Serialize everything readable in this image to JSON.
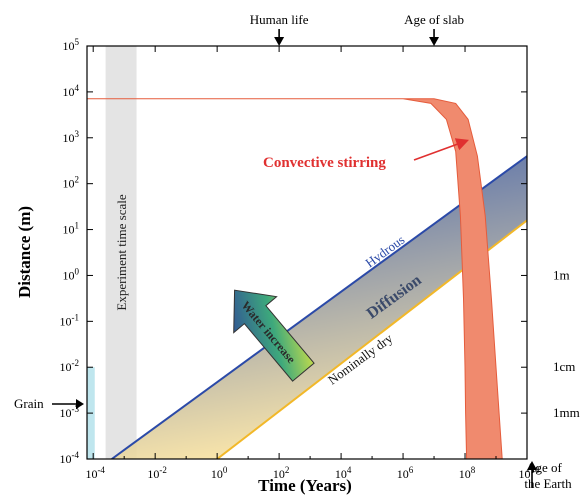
{
  "chart_data": {
    "type": "area",
    "xlabel": "Time (Years)",
    "ylabel": "Distance (m)",
    "x_scale": "log",
    "y_scale": "log",
    "xlim_exp": [
      -4.2,
      10
    ],
    "ylim_exp": [
      -4,
      5
    ],
    "x_ticks": [
      {
        "value": -4,
        "label": "10",
        "sup": "-4"
      },
      {
        "value": -2,
        "label": "10",
        "sup": "-2"
      },
      {
        "value": 0,
        "label": "10",
        "sup": "0"
      },
      {
        "value": 2,
        "label": "10",
        "sup": "2"
      },
      {
        "value": 4,
        "label": "10",
        "sup": "4"
      },
      {
        "value": 6,
        "label": "10",
        "sup": "6"
      },
      {
        "value": 8,
        "label": "10",
        "sup": "8"
      },
      {
        "value": 10,
        "label": "10",
        "sup": "10"
      }
    ],
    "y_ticks": [
      {
        "value": -4,
        "label": "10",
        "sup": "-4"
      },
      {
        "value": -3,
        "label": "10",
        "sup": "-3"
      },
      {
        "value": -2,
        "label": "10",
        "sup": "-2"
      },
      {
        "value": -1,
        "label": "10",
        "sup": "-1"
      },
      {
        "value": 0,
        "label": "10",
        "sup": "0"
      },
      {
        "value": 1,
        "label": "10",
        "sup": "1"
      },
      {
        "value": 2,
        "label": "10",
        "sup": "2"
      },
      {
        "value": 3,
        "label": "10",
        "sup": "3"
      },
      {
        "value": 4,
        "label": "10",
        "sup": "4"
      },
      {
        "value": 5,
        "label": "10",
        "sup": "5"
      }
    ],
    "right_scale": [
      {
        "value": 0,
        "label": "1m"
      },
      {
        "value": -2,
        "label": "1cm"
      },
      {
        "value": -3,
        "label": "1mm"
      }
    ],
    "top_markers": [
      {
        "x": 2,
        "label": "Human life"
      },
      {
        "x": 7,
        "label": "Age of slab"
      }
    ],
    "age_of_earth": {
      "x": 9.66,
      "label_lines": [
        "Age of",
        "the Earth"
      ]
    },
    "grain": {
      "label": "Grain",
      "y": -3.6
    },
    "grain_band": {
      "x_from": -4.2,
      "x_to": -3.95,
      "y_top": -2
    },
    "experiment_band": {
      "x_from": -3.6,
      "x_to": -2.6,
      "label": "Experiment time scale"
    },
    "diffusion": {
      "label": "Diffusion",
      "hydrous": {
        "name": "Hydrous",
        "points": [
          [
            -3.4,
            -4
          ],
          [
            10,
            2.6
          ]
        ]
      },
      "dry": {
        "name": "Nominally dry",
        "points": [
          [
            0,
            -4
          ],
          [
            10,
            1.2
          ]
        ]
      }
    },
    "convective": {
      "label": "Convective stirring",
      "plateau_y": 3.85,
      "upper_edge": [
        [
          -4.2,
          3.85
        ],
        [
          7.0,
          3.85
        ],
        [
          7.7,
          3.75
        ],
        [
          8.1,
          3.4
        ],
        [
          8.4,
          2.6
        ],
        [
          8.65,
          1.3
        ],
        [
          8.85,
          -0.5
        ],
        [
          9.0,
          -2.0
        ],
        [
          9.1,
          -3.0
        ],
        [
          9.2,
          -4
        ]
      ],
      "lower_edge": [
        [
          -4.2,
          3.85
        ],
        [
          6.0,
          3.85
        ],
        [
          6.9,
          3.75
        ],
        [
          7.4,
          3.4
        ],
        [
          7.7,
          2.7
        ],
        [
          7.85,
          1.3
        ],
        [
          7.95,
          -0.5
        ],
        [
          8.0,
          -2.0
        ],
        [
          8.02,
          -3.0
        ],
        [
          8.05,
          -4
        ]
      ]
    },
    "water_arrow": {
      "label": "Water increase"
    }
  }
}
